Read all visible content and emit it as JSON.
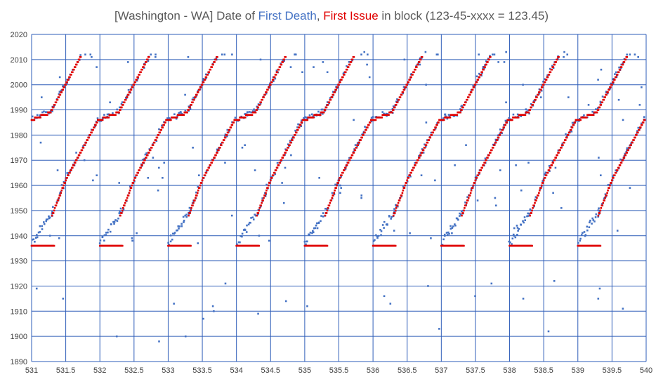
{
  "chart_data": {
    "type": "scatter",
    "title": {
      "prefix": "[Washington - WA] Date of ",
      "series1": "First Death",
      "separator": ", ",
      "series2": "First Issue",
      "suffix": " in block (123-45-xxxx = 123.45)"
    },
    "xlim": [
      531,
      540
    ],
    "ylim": [
      1890,
      2020
    ],
    "x_ticks": [
      "531",
      "531.5",
      "532",
      "532.5",
      "533",
      "533.5",
      "534",
      "534.5",
      "535",
      "535.5",
      "536",
      "536.5",
      "537",
      "537.5",
      "538",
      "538.5",
      "539",
      "539.5",
      "540"
    ],
    "y_ticks": [
      "1890",
      "1900",
      "1910",
      "1920",
      "1930",
      "1940",
      "1950",
      "1960",
      "1970",
      "1980",
      "1990",
      "2000",
      "2010",
      "2020"
    ],
    "grid": true,
    "legend": "none",
    "colors": {
      "first_death": "#4472c4",
      "first_issue": "#e00000",
      "grid": "#2e5db8",
      "title_series1": "#4472c4",
      "title_series2": "#e00000"
    },
    "pattern": {
      "block_starts": [
        531,
        532,
        533,
        534,
        535,
        536,
        537,
        538,
        539
      ],
      "issue_flat_year": 1936,
      "issue_flat_width": 0.34,
      "issue_segments": [
        {
          "x0": 0.0,
          "y0": 1986,
          "x1": 0.28,
          "y1": 1989
        },
        {
          "x0": 0.28,
          "y0": 1989,
          "x1": 0.72,
          "y1": 2011
        },
        {
          "x0": 0.3,
          "y0": 1948,
          "x1": 0.5,
          "y1": 1962
        },
        {
          "x0": 0.5,
          "y0": 1962,
          "x1": 0.98,
          "y1": 1986
        }
      ],
      "death_early_segment": {
        "x0": 0.0,
        "y0": 1937,
        "x1": 0.32,
        "y1": 1950
      }
    }
  }
}
